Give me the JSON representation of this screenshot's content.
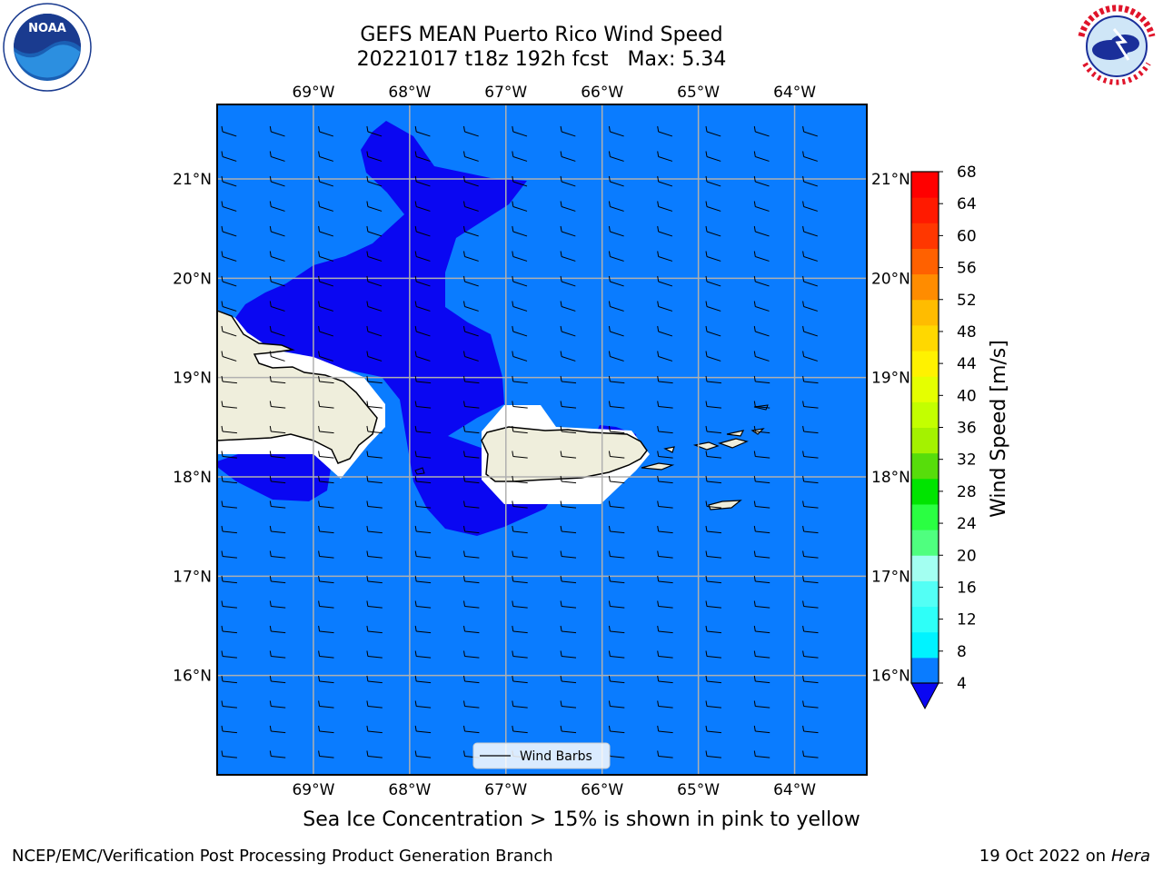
{
  "title_line1": "GEFS MEAN Puerto Rico Wind Speed",
  "title_line2": "20221017 t18z 192h fcst   Max: 5.34",
  "map": {
    "lon_labels": [
      "69°W",
      "68°W",
      "67°W",
      "66°W",
      "65°W",
      "64°W"
    ],
    "lon_values": [
      -69,
      -68,
      -67,
      -66,
      -65,
      -64
    ],
    "lat_labels": [
      "21°N",
      "20°N",
      "19°N",
      "18°N",
      "17°N",
      "16°N"
    ],
    "lat_values": [
      21,
      20,
      19,
      18,
      17,
      16
    ],
    "extent": {
      "lon_min": -70.0,
      "lon_max": -63.25,
      "lat_min": 15.0,
      "lat_max": 21.75
    },
    "legend_label": "Wind Barbs",
    "colors": {
      "ocean_fill": "#0a7cff",
      "calm_fill": "#0a07f2",
      "land": "#efeedc",
      "grid": "#b0b0b0"
    }
  },
  "colorbar": {
    "label": "Wind Speed [m/s]",
    "ticks": [
      "68",
      "64",
      "60",
      "56",
      "52",
      "48",
      "44",
      "40",
      "36",
      "32",
      "28",
      "24",
      "20",
      "16",
      "12",
      "8",
      "4"
    ],
    "colors_bottom_to_top": [
      "#0a7cff",
      "#00f3ff",
      "#2efff8",
      "#53fff5",
      "#a3fff1",
      "#4fff7f",
      "#2aff42",
      "#00e400",
      "#57dd0b",
      "#a4f200",
      "#c3ff00",
      "#e5ff00",
      "#fff200",
      "#ffd800",
      "#ffbc00",
      "#ff8c00",
      "#ff6100",
      "#ff3700",
      "#ff1a00",
      "#ff0000"
    ],
    "under_color": "#0a07f2"
  },
  "bottom_note": "Sea Ice Concentration > 15% is shown in pink to yellow",
  "footer_left": "NCEP/EMC/Verification Post Processing Product Generation Branch",
  "footer_date": "19 Oct 2022 on ",
  "footer_machine": "Hera",
  "logos": {
    "left": "noaa-logo",
    "right": "nws-logo"
  }
}
